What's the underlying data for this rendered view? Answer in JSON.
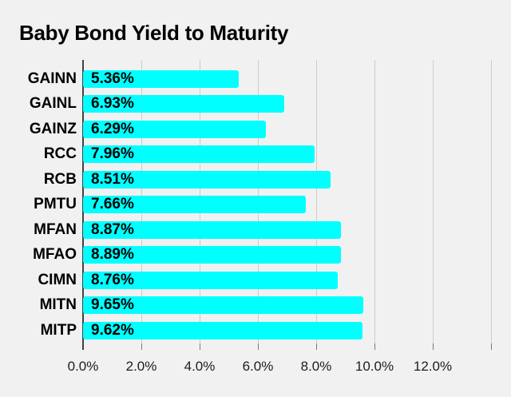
{
  "chart_data": {
    "type": "bar",
    "orientation": "horizontal",
    "title": "Baby Bond Yield to Maturity",
    "categories": [
      "GAINN",
      "GAINL",
      "GAINZ",
      "RCC",
      "RCB",
      "PMTU",
      "MFAN",
      "MFAO",
      "CIMN",
      "MITN",
      "MITP"
    ],
    "values": [
      5.36,
      6.93,
      6.29,
      7.96,
      8.51,
      7.66,
      8.87,
      8.89,
      8.76,
      9.65,
      9.62
    ],
    "value_labels": [
      "5.36%",
      "6.93%",
      "6.29%",
      "7.96%",
      "8.51%",
      "7.66%",
      "8.87%",
      "8.89%",
      "8.76%",
      "9.65%",
      "9.62%"
    ],
    "xlabel": "",
    "ylabel": "",
    "xlim": [
      0,
      14
    ],
    "x_tick_values": [
      0,
      2,
      4,
      6,
      8,
      10,
      12
    ],
    "x_tick_labels": [
      "0.0%",
      "2.0%",
      "4.0%",
      "6.0%",
      "8.0%",
      "10.0%",
      "12.0%"
    ],
    "grid": true,
    "grid_interval_pct": 2,
    "unlabeled_grid_at_pct": 14,
    "legend": false,
    "value_labels_position": "inside-start",
    "colors": {
      "background": "#f1f1f1",
      "bar": "#00ffff",
      "gridline": "#cccccc",
      "axis_line": "#424242",
      "title_text": "#000000",
      "label_text": "#000000",
      "tick_label_text": "#1c1c1c"
    }
  }
}
